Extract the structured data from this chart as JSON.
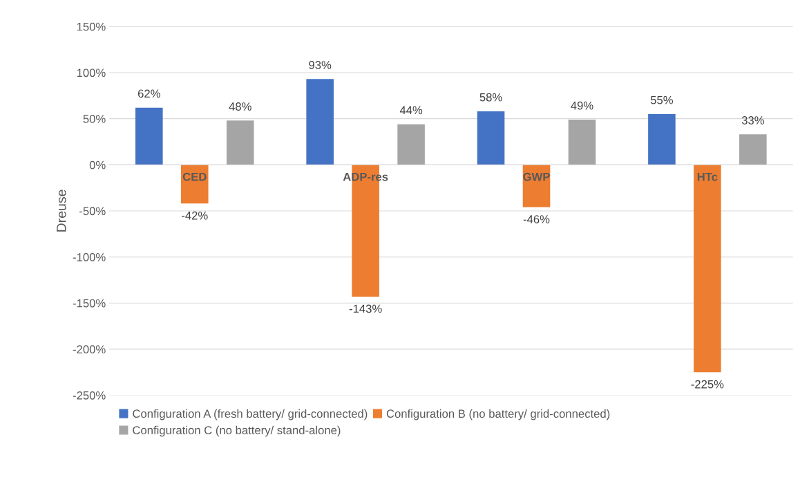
{
  "chart_data": {
    "type": "bar",
    "ylabel": "Dreuse",
    "categories": [
      "CED",
      "ADP-res",
      "GWP",
      "HTc"
    ],
    "series": [
      {
        "name": "Configuration A (fresh battery/ grid-connected)",
        "color": "#4472c4",
        "values": [
          62,
          93,
          58,
          55
        ],
        "value_labels": [
          "62%",
          "93%",
          "58%",
          "55%"
        ]
      },
      {
        "name": "Configuration B (no battery/ grid-connected)",
        "color": "#ed7d31",
        "values": [
          -42,
          -143,
          -46,
          -225
        ],
        "value_labels": [
          "-42%",
          "-143%",
          "-46%",
          "-225%"
        ]
      },
      {
        "name": "Configuration C (no battery/ stand-alone)",
        "color": "#a5a5a5",
        "values": [
          48,
          44,
          49,
          33
        ],
        "value_labels": [
          "48%",
          "44%",
          "49%",
          "33%"
        ]
      }
    ],
    "ylim": [
      -250,
      150
    ],
    "yticks": [
      {
        "value": -250,
        "label": "-250%"
      },
      {
        "value": -200,
        "label": "-200%"
      },
      {
        "value": -150,
        "label": "-150%"
      },
      {
        "value": -100,
        "label": "-100%"
      },
      {
        "value": -50,
        "label": "-50%"
      },
      {
        "value": 0,
        "label": "0%"
      },
      {
        "value": 50,
        "label": "50%"
      },
      {
        "value": 100,
        "label": "100%"
      },
      {
        "value": 150,
        "label": "150%"
      }
    ],
    "grid": "y",
    "legend": "bottom"
  }
}
